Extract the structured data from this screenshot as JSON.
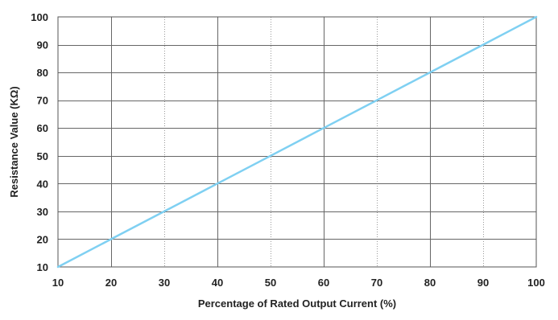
{
  "chart_data": {
    "type": "line",
    "xlabel": "Percentage of Rated Output Current (%)",
    "ylabel": "Resistance Value (KΩ)",
    "xlim": [
      10,
      100
    ],
    "ylim": [
      10,
      100
    ],
    "xticks": [
      "10",
      "20",
      "30",
      "40",
      "50",
      "60",
      "70",
      "80",
      "90",
      "100"
    ],
    "yticks": [
      "10",
      "20",
      "30",
      "40",
      "50",
      "60",
      "70",
      "80",
      "90",
      "100"
    ],
    "grid": true,
    "colors": {
      "line": "#7fd0f2",
      "major_grid": "#666666",
      "minor_grid": "#999999",
      "frame": "#555555"
    },
    "series": [
      {
        "x": [
          10,
          20,
          30,
          40,
          50,
          60,
          70,
          80,
          90,
          100
        ],
        "y": [
          10,
          20,
          30,
          40,
          50,
          60,
          70,
          80,
          90,
          100
        ]
      }
    ]
  }
}
